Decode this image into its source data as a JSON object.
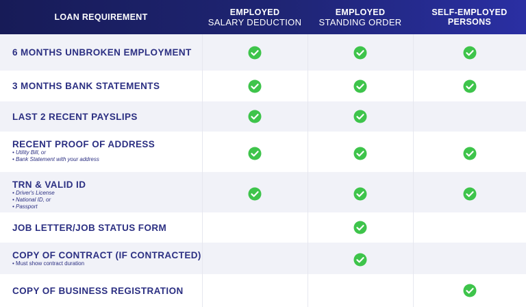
{
  "header": {
    "columns": [
      {
        "line1": "LOAN REQUIREMENT"
      },
      {
        "line1": "EMPLOYED",
        "line2": "SALARY DEDUCTION"
      },
      {
        "line1": "EMPLOYED",
        "line2": "STANDING ORDER"
      },
      {
        "line1": "SELF-EMPLOYED",
        "line2": "PERSONS",
        "line2_bold": true
      }
    ]
  },
  "table": {
    "rows": [
      {
        "requirement": "6 MONTHS UNBROKEN EMPLOYMENT",
        "checks": [
          true,
          true,
          true
        ]
      },
      {
        "requirement": "3 MONTHS BANK STATEMENTS",
        "checks": [
          true,
          true,
          true
        ]
      },
      {
        "requirement": "LAST 2 RECENT PAYSLIPS",
        "checks": [
          true,
          true,
          false
        ]
      },
      {
        "requirement": "RECENT PROOF OF ADDRESS",
        "notes": [
          "• Utility Bill, or",
          "• Bank Statement with your address"
        ],
        "checks": [
          true,
          true,
          true
        ]
      },
      {
        "requirement": "TRN & VALID ID",
        "notes": [
          "• Driver's License",
          "• National ID, or",
          "• Passport"
        ],
        "checks": [
          true,
          true,
          true
        ]
      },
      {
        "requirement": "JOB LETTER/JOB STATUS FORM",
        "checks": [
          false,
          true,
          false
        ]
      },
      {
        "requirement": "COPY OF CONTRACT (IF CONTRACTED)",
        "notes": [
          "• Must show contract duration"
        ],
        "notes_plain": true,
        "checks": [
          false,
          true,
          false
        ]
      },
      {
        "requirement": "COPY OF BUSINESS REGISTRATION",
        "checks": [
          false,
          false,
          true
        ]
      }
    ]
  }
}
